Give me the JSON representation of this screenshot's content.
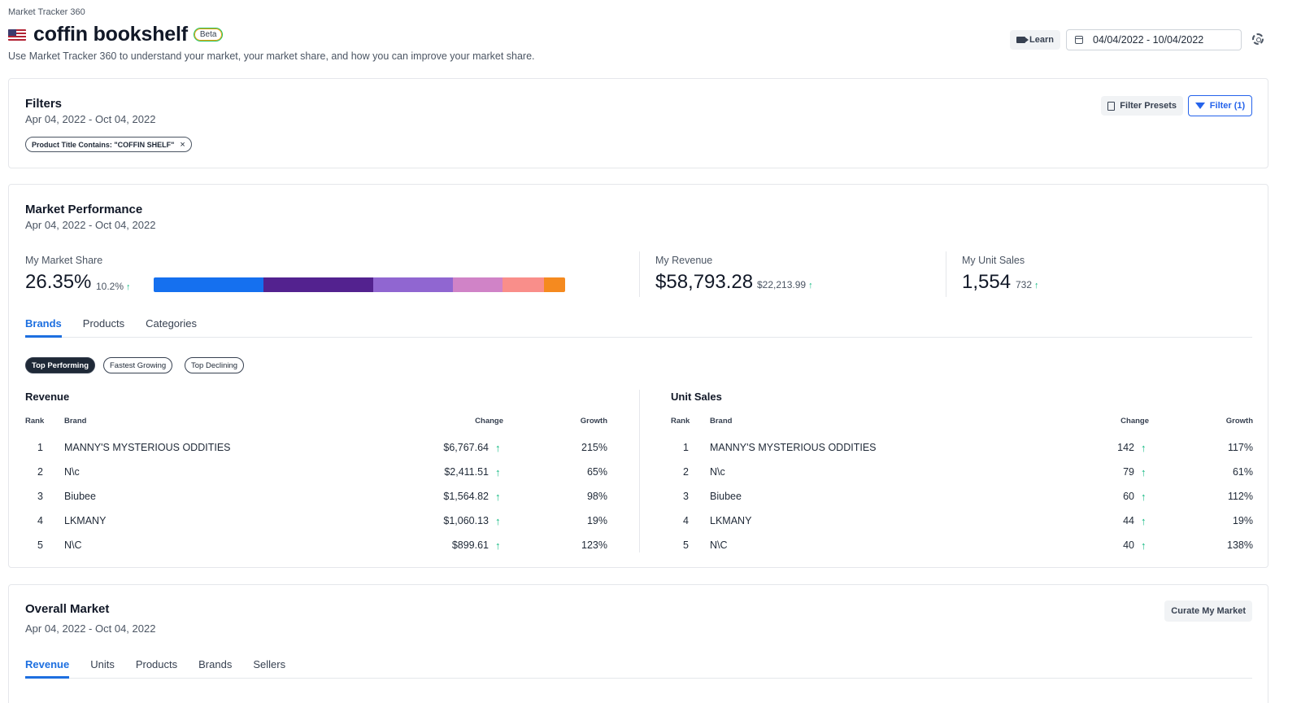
{
  "app": {
    "breadcrumb": "Market Tracker 360"
  },
  "header": {
    "title": "coffin bookshelf",
    "badge": "Beta",
    "subtitle": "Use Market Tracker 360 to understand your market, your market share, and how you can improve your market share.",
    "learn_label": "Learn",
    "date_range": "04/04/2022 - 10/04/2022"
  },
  "filters": {
    "title": "Filters",
    "date": "Apr 04, 2022 - Oct 04, 2022",
    "chip": "Product Title Contains: \"COFFIN SHELF\"",
    "chip_close": "×",
    "presets_label": "Filter Presets",
    "filter_label": "Filter (1)"
  },
  "performance": {
    "title": "Market Performance",
    "date": "Apr 04, 2022 - Oct 04, 2022",
    "share": {
      "label": "My Market Share",
      "value": "26.35%",
      "delta": "10.2%"
    },
    "revenue": {
      "label": "My Revenue",
      "value": "$58,793.28",
      "delta": "$22,213.99"
    },
    "units": {
      "label": "My Unit Sales",
      "value": "1,554",
      "delta": "732"
    },
    "share_segments": [
      {
        "fraction": 0.267,
        "color": "#1570ef"
      },
      {
        "fraction": 0.267,
        "color": "#53228f"
      },
      {
        "fraction": 0.193,
        "color": "#9066d1"
      },
      {
        "fraction": 0.12,
        "color": "#d083c7"
      },
      {
        "fraction": 0.102,
        "color": "#f98e8a"
      },
      {
        "fraction": 0.051,
        "color": "#f58a1f"
      }
    ],
    "tabs": [
      "Brands",
      "Products",
      "Categories"
    ],
    "pills": [
      "Top Performing",
      "Fastest Growing",
      "Top Declining"
    ],
    "revenue_table": {
      "title": "Revenue",
      "headers": {
        "rank": "Rank",
        "brand": "Brand",
        "change": "Change",
        "growth": "Growth"
      },
      "rows": [
        {
          "rank": "1",
          "brand": "MANNY'S MYSTERIOUS ODDITIES",
          "change": "$6,767.64",
          "growth": "215%"
        },
        {
          "rank": "2",
          "brand": "N\\c",
          "change": "$2,411.51",
          "growth": "65%"
        },
        {
          "rank": "3",
          "brand": "Biubee",
          "change": "$1,564.82",
          "growth": "98%"
        },
        {
          "rank": "4",
          "brand": "LKMANY",
          "change": "$1,060.13",
          "growth": "19%"
        },
        {
          "rank": "5",
          "brand": "N\\C",
          "change": "$899.61",
          "growth": "123%"
        }
      ]
    },
    "units_table": {
      "title": "Unit Sales",
      "headers": {
        "rank": "Rank",
        "brand": "Brand",
        "change": "Change",
        "growth": "Growth"
      },
      "rows": [
        {
          "rank": "1",
          "brand": "MANNY'S MYSTERIOUS ODDITIES",
          "change": "142",
          "growth": "117%"
        },
        {
          "rank": "2",
          "brand": "N\\c",
          "change": "79",
          "growth": "61%"
        },
        {
          "rank": "3",
          "brand": "Biubee",
          "change": "60",
          "growth": "112%"
        },
        {
          "rank": "4",
          "brand": "LKMANY",
          "change": "44",
          "growth": "19%"
        },
        {
          "rank": "5",
          "brand": "N\\C",
          "change": "40",
          "growth": "138%"
        }
      ]
    }
  },
  "overall": {
    "title": "Overall Market",
    "date": "Apr 04, 2022 - Oct 04, 2022",
    "curate_label": "Curate My Market",
    "tabs": [
      "Revenue",
      "Units",
      "Products",
      "Brands",
      "Sellers"
    ]
  },
  "icons": {
    "up_arrow": "↑"
  }
}
